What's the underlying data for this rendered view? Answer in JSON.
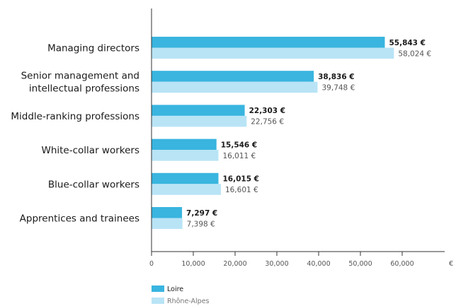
{
  "chart_data": {
    "type": "bar",
    "orientation": "horizontal",
    "categories": [
      [
        "Managing directors"
      ],
      [
        "Senior management and",
        "intellectual professions"
      ],
      [
        "Middle-ranking professions"
      ],
      [
        "White-collar workers"
      ],
      [
        "Blue-collar workers"
      ],
      [
        "Apprentices and trainees"
      ]
    ],
    "series": [
      {
        "name": "Loire",
        "color": "#39b5df",
        "values": [
          55843,
          38836,
          22303,
          15546,
          16015,
          7297
        ],
        "labels": [
          "55,843 €",
          "38,836 €",
          "22,303 €",
          "15,546 €",
          "16,015 €",
          "7,297 €"
        ]
      },
      {
        "name": "Rhône-Alpes",
        "color": "#b9e4f6",
        "values": [
          58024,
          39748,
          22756,
          16011,
          16601,
          7398
        ],
        "labels": [
          "58,024 €",
          "39,748 €",
          "22,756 €",
          "16,011 €",
          "16,601 €",
          "7,398 €"
        ]
      }
    ],
    "xticks": [
      0,
      10000,
      20000,
      30000,
      40000,
      50000,
      60000
    ],
    "xtick_labels": [
      "0",
      "10,000",
      "20,000",
      "30,000",
      "40,000",
      "50,000",
      "60,000"
    ],
    "xlim": [
      0,
      72000
    ],
    "unit": "€",
    "grid": false,
    "legend_position": "bottom-left"
  }
}
